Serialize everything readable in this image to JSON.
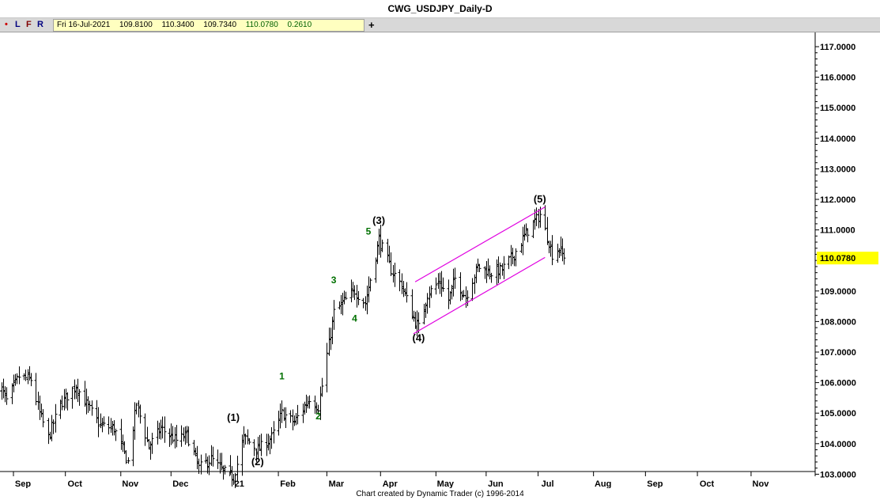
{
  "window": {
    "title": "CWG_USDJPY_Daily-D"
  },
  "toolbar": {
    "dot_label": "•",
    "l_label": "L",
    "f_label": "F",
    "r_label": "R",
    "plus_label": "+",
    "quote": {
      "date": "Fri 16-Jul-2021",
      "open": "109.8100",
      "high": "110.3400",
      "low": "109.7340",
      "close": "110.0780",
      "change": "0.2610"
    }
  },
  "colors": {
    "bars": "#000000",
    "channel": "#e000e0",
    "wave_minor": "#007000",
    "wave_major": "#000000",
    "price_tag": "#ffff00",
    "dot": "#cc0000"
  },
  "footer": {
    "credit": "Chart created by Dynamic Trader  (c) 1996-2014"
  },
  "chart_data": {
    "type": "ohlc",
    "title": "CWG_USDJPY_Daily-D",
    "xlabel": "",
    "ylabel": "",
    "ylim": [
      102.6,
      117.3
    ],
    "yticks": [
      "117.0000",
      "116.0000",
      "115.0000",
      "114.0000",
      "113.0000",
      "112.0000",
      "111.0000",
      "110.0000",
      "109.0000",
      "108.0000",
      "107.0000",
      "106.0000",
      "105.0000",
      "104.0000",
      "103.0000"
    ],
    "xticks": [
      {
        "label": "Sep",
        "date": "2020-09-01"
      },
      {
        "label": "Oct",
        "date": "2020-10-01"
      },
      {
        "label": "Nov",
        "date": "2020-11-02"
      },
      {
        "label": "Dec",
        "date": "2020-12-01"
      },
      {
        "label": "21",
        "date": "2021-01-04"
      },
      {
        "label": "Feb",
        "date": "2021-02-01"
      },
      {
        "label": "Mar",
        "date": "2021-03-01"
      },
      {
        "label": "Apr",
        "date": "2021-04-01"
      },
      {
        "label": "May",
        "date": "2021-05-03"
      },
      {
        "label": "Jun",
        "date": "2021-06-01"
      },
      {
        "label": "Jul",
        "date": "2021-07-01"
      },
      {
        "label": "Aug",
        "date": "2021-08-02"
      },
      {
        "label": "Sep",
        "date": "2021-09-01"
      },
      {
        "label": "Oct",
        "date": "2021-10-01"
      },
      {
        "label": "Nov",
        "date": "2021-11-01"
      }
    ],
    "last_price": {
      "value": 110.078,
      "label": "110.0780"
    },
    "closes_path": [
      [
        "2020-08-24",
        105.9
      ],
      [
        "2020-08-28",
        105.4
      ],
      [
        "2020-09-04",
        106.2
      ],
      [
        "2020-09-11",
        106.1
      ],
      [
        "2020-09-16",
        105.0
      ],
      [
        "2020-09-21",
        104.2
      ],
      [
        "2020-09-28",
        105.3
      ],
      [
        "2020-10-07",
        105.9
      ],
      [
        "2020-10-14",
        105.2
      ],
      [
        "2020-10-21",
        104.6
      ],
      [
        "2020-10-29",
        104.5
      ],
      [
        "2020-11-06",
        103.4
      ],
      [
        "2020-11-11",
        105.3
      ],
      [
        "2020-11-18",
        103.9
      ],
      [
        "2020-11-25",
        104.5
      ],
      [
        "2020-12-04",
        104.1
      ],
      [
        "2020-12-10",
        104.3
      ],
      [
        "2020-12-17",
        103.2
      ],
      [
        "2020-12-24",
        103.5
      ],
      [
        "2020-12-31",
        103.1
      ],
      [
        "2021-01-06",
        102.9
      ],
      [
        "2021-01-12",
        104.2
      ],
      [
        "2021-01-20",
        103.8
      ],
      [
        "2021-01-28",
        104.2
      ],
      [
        "2021-02-03",
        105.0
      ],
      [
        "2021-02-10",
        104.7
      ],
      [
        "2021-02-19",
        105.5
      ],
      [
        "2021-02-24",
        105.2
      ],
      [
        "2021-03-05",
        108.3
      ],
      [
        "2021-03-10",
        108.6
      ],
      [
        "2021-03-17",
        109.0
      ],
      [
        "2021-03-23",
        108.6
      ],
      [
        "2021-03-31",
        110.7
      ],
      [
        "2021-04-07",
        109.7
      ],
      [
        "2021-04-13",
        109.2
      ],
      [
        "2021-04-20",
        108.1
      ],
      [
        "2021-04-23",
        107.8
      ],
      [
        "2021-04-28",
        108.9
      ],
      [
        "2021-05-05",
        109.3
      ],
      [
        "2021-05-10",
        108.7
      ],
      [
        "2021-05-14",
        109.4
      ],
      [
        "2021-05-20",
        108.8
      ],
      [
        "2021-05-27",
        109.8
      ],
      [
        "2021-06-04",
        109.6
      ],
      [
        "2021-06-10",
        109.7
      ],
      [
        "2021-06-17",
        110.2
      ],
      [
        "2021-06-24",
        110.9
      ],
      [
        "2021-07-02",
        111.5
      ],
      [
        "2021-07-07",
        110.6
      ],
      [
        "2021-07-09",
        110.2
      ],
      [
        "2021-07-13",
        110.4
      ],
      [
        "2021-07-16",
        110.078
      ]
    ],
    "wave_labels": [
      {
        "label": "(1)",
        "date": "2021-01-06",
        "price": 104.75,
        "kind": "major"
      },
      {
        "label": "(2)",
        "date": "2021-01-20",
        "price": 103.3,
        "kind": "major"
      },
      {
        "label": "(3)",
        "date": "2021-03-31",
        "price": 111.2,
        "kind": "major"
      },
      {
        "label": "(4)",
        "date": "2021-04-23",
        "price": 107.35,
        "kind": "major"
      },
      {
        "label": "(5)",
        "date": "2021-07-02",
        "price": 111.9,
        "kind": "major"
      },
      {
        "label": "1",
        "date": "2021-02-03",
        "price": 106.1,
        "kind": "minor"
      },
      {
        "label": "2",
        "date": "2021-02-24",
        "price": 104.8,
        "kind": "minor"
      },
      {
        "label": "3",
        "date": "2021-03-05",
        "price": 109.25,
        "kind": "minor"
      },
      {
        "label": "4",
        "date": "2021-03-17",
        "price": 108.0,
        "kind": "minor"
      },
      {
        "label": "5",
        "date": "2021-03-25",
        "price": 110.85,
        "kind": "minor"
      }
    ],
    "channel_lines": [
      {
        "from": {
          "date": "2021-04-21",
          "price": 109.3
        },
        "to": {
          "date": "2021-07-05",
          "price": 111.75
        }
      },
      {
        "from": {
          "date": "2021-04-20",
          "price": 107.6
        },
        "to": {
          "date": "2021-07-05",
          "price": 110.1
        }
      }
    ]
  }
}
